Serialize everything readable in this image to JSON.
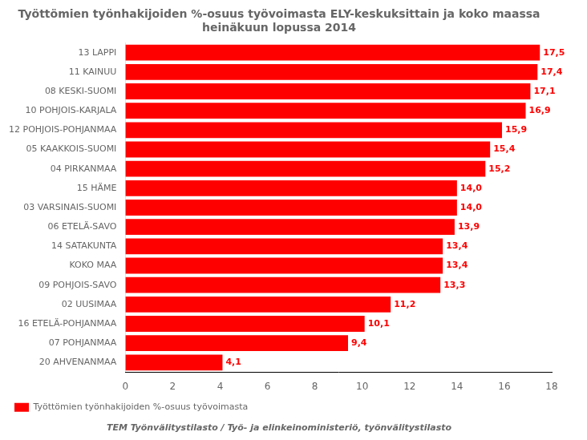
{
  "chart_data": {
    "type": "bar",
    "orientation": "horizontal",
    "title": "Työttömien työnhakijoiden %-osuus työvoimasta ELY-keskuksittain ja koko maassa\nheinäkuun lopussa 2014",
    "categories": [
      "20 AHVENANMAA",
      "07 POHJANMAA",
      "16 ETELÄ-POHJANMAA",
      "02 UUSIMAA",
      "09 POHJOIS-SAVO",
      "KOKO MAA",
      "14 SATAKUNTA",
      "06 ETELÄ-SAVO",
      "03 VARSINAIS-SUOMI",
      "15 HÄME",
      "04 PIRKANMAA",
      "05 KAAKKOIS-SUOMI",
      "12 POHJOIS-POHJANMAA",
      "10 POHJOIS-KARJALA",
      "08 KESKI-SUOMI",
      "11 KAINUU",
      "13 LAPPI"
    ],
    "series": [
      {
        "name": "Työttömien työnhakijoiden %-osuus työvoimasta",
        "color": "#FF0000",
        "values": [
          4.1,
          9.4,
          10.1,
          11.2,
          13.3,
          13.4,
          13.4,
          13.9,
          14.0,
          14.0,
          15.2,
          15.4,
          15.9,
          16.9,
          17.1,
          17.4,
          17.5
        ],
        "value_labels": [
          "4,1",
          "9,4",
          "10,1",
          "11,2",
          "13,3",
          "13,4",
          "13,4",
          "13,9",
          "14,0",
          "14,0",
          "15,2",
          "15,4",
          "15,9",
          "16,9",
          "17,1",
          "17,4",
          "17,5"
        ]
      }
    ],
    "xlim": [
      0,
      18
    ],
    "xticks": [
      0,
      2,
      4,
      6,
      8,
      10,
      12,
      14,
      16,
      18
    ],
    "grid": false,
    "legend": "lower left",
    "data_labels": true,
    "annotations": [
      "TEM Työnvälitystilasto / Työ- ja elinkeinoministeriö, työnvälitystilasto"
    ]
  }
}
